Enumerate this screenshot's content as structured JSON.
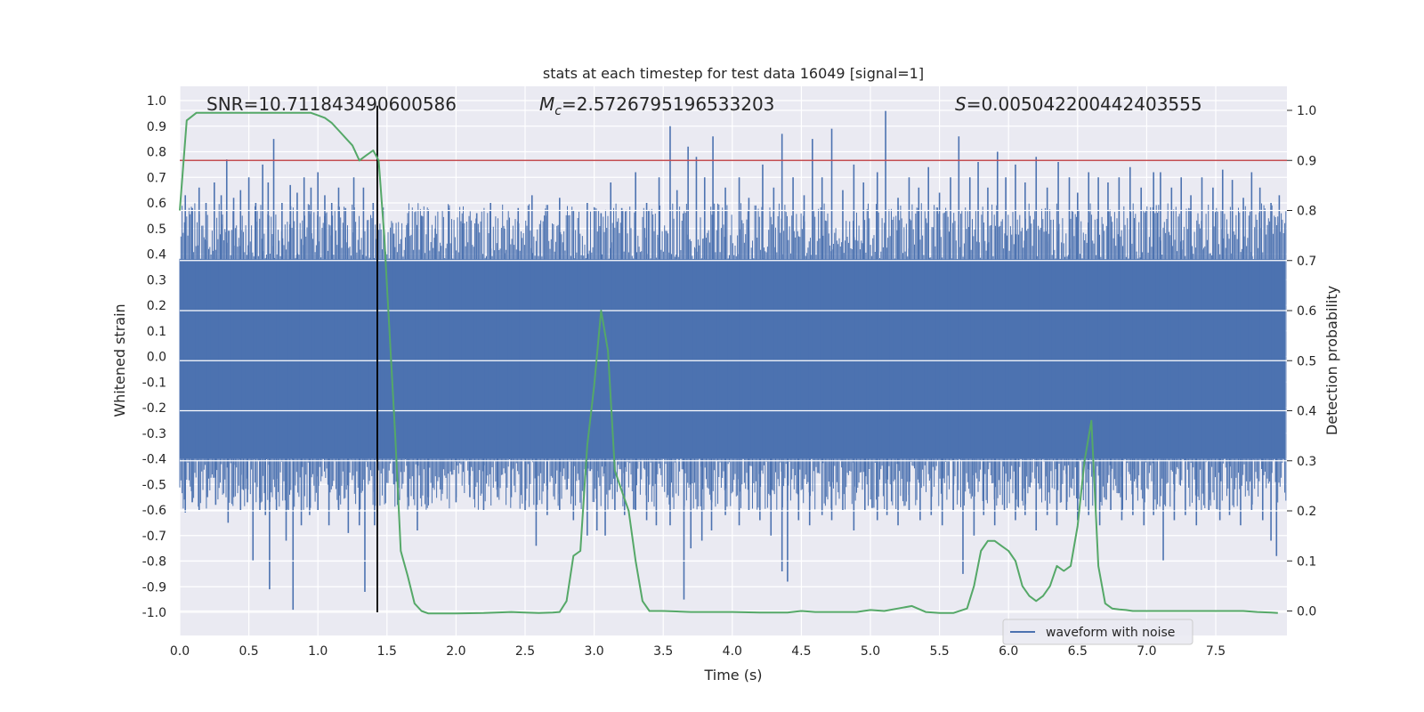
{
  "chart_data": {
    "type": "line",
    "title": "stats at each timestep for test data 16049 [signal=1]",
    "xlabel": "Time (s)",
    "ylabel_left": "Whitened strain",
    "ylabel_right": "Detection probability",
    "xlim": [
      0.0,
      8.0
    ],
    "ylim_left": [
      -1.09,
      1.07
    ],
    "ylim_right": [
      -0.05,
      1.04
    ],
    "x_ticks": [
      0.0,
      0.5,
      1.0,
      1.5,
      2.0,
      2.5,
      3.0,
      3.5,
      4.0,
      4.5,
      5.0,
      5.5,
      6.0,
      6.5,
      7.0,
      7.5
    ],
    "x_tick_labels": [
      "0.0",
      "0.5",
      "1.0",
      "1.5",
      "2.0",
      "2.5",
      "3.0",
      "3.5",
      "4.0",
      "4.5",
      "5.0",
      "5.5",
      "6.0",
      "6.5",
      "7.0",
      "7.5"
    ],
    "y_left_ticks": [
      1.0,
      0.9,
      0.8,
      0.7,
      0.6,
      0.5,
      0.4,
      0.3,
      0.2,
      0.1,
      0.0,
      -0.1,
      -0.2,
      -0.3,
      -0.4,
      -0.5,
      -0.6,
      -0.7,
      -0.8,
      -0.9,
      -1.0
    ],
    "y_left_tick_labels": [
      "1.0",
      "0.9",
      "0.8",
      "0.7",
      "0.6",
      "0.5",
      "0.4",
      "0.3",
      "0.2",
      "0.1",
      "0.0",
      "-0.1",
      "-0.2",
      "-0.3",
      "-0.4",
      "-0.5",
      "-0.6",
      "-0.7",
      "-0.8",
      "-0.9",
      "-1.0"
    ],
    "y_right_ticks": [
      1.0,
      0.9,
      0.8,
      0.7,
      0.6,
      0.5,
      0.4,
      0.3,
      0.2,
      0.1,
      0.0
    ],
    "y_right_tick_labels": [
      "1.0",
      "0.9",
      "0.8",
      "0.7",
      "0.6",
      "0.5",
      "0.4",
      "0.3",
      "0.2",
      "0.1",
      "0.0"
    ],
    "annotations": [
      {
        "name": "snr-annotation",
        "prefix": "SNR",
        "sub": "",
        "value": "=10.711843490600586",
        "x_data": 0.19
      },
      {
        "name": "chirp-mass-annotation",
        "prefix": "M",
        "sub": "c",
        "value": "=2.5726795196533203",
        "x_data": 2.6
      },
      {
        "name": "s-annotation",
        "prefix": "S",
        "sub": "",
        "value": "=0.005042200442403555",
        "x_data": 5.6
      }
    ],
    "legend": [
      {
        "label": "waveform with noise",
        "color": "#4c72b0"
      }
    ],
    "legend_position": "lower-right",
    "threshold_probability": 0.9,
    "merger_time": 1.43,
    "waveform": {
      "name": "waveform with noise",
      "color": "#4c72b0",
      "x_range": [
        0.0,
        8.0
      ],
      "band_lo": -0.4,
      "band_hi": 0.38,
      "upper_spikes": [
        [
          0.04,
          0.63
        ],
        [
          0.09,
          0.58
        ],
        [
          0.14,
          0.66
        ],
        [
          0.19,
          0.6
        ],
        [
          0.25,
          0.68
        ],
        [
          0.3,
          0.63
        ],
        [
          0.34,
          0.77
        ],
        [
          0.39,
          0.62
        ],
        [
          0.44,
          0.65
        ],
        [
          0.5,
          0.7
        ],
        [
          0.55,
          0.6
        ],
        [
          0.6,
          0.75
        ],
        [
          0.64,
          0.68
        ],
        [
          0.68,
          0.85
        ],
        [
          0.74,
          0.6
        ],
        [
          0.8,
          0.67
        ],
        [
          0.85,
          0.64
        ],
        [
          0.9,
          0.7
        ],
        [
          0.95,
          0.66
        ],
        [
          1.0,
          0.72
        ],
        [
          1.05,
          0.63
        ],
        [
          1.1,
          0.6
        ],
        [
          1.15,
          0.66
        ],
        [
          1.2,
          0.58
        ],
        [
          1.26,
          0.7
        ],
        [
          1.33,
          0.66
        ],
        [
          1.4,
          0.6
        ],
        [
          1.55,
          0.48
        ],
        [
          1.65,
          0.52
        ],
        [
          1.75,
          0.55
        ],
        [
          1.85,
          0.5
        ],
        [
          1.95,
          0.58
        ],
        [
          2.05,
          0.52
        ],
        [
          2.15,
          0.56
        ],
        [
          2.25,
          0.6
        ],
        [
          2.35,
          0.5
        ],
        [
          2.45,
          0.58
        ],
        [
          2.55,
          0.63
        ],
        [
          2.65,
          0.55
        ],
        [
          2.75,
          0.62
        ],
        [
          2.85,
          0.57
        ],
        [
          2.95,
          0.6
        ],
        [
          3.05,
          0.56
        ],
        [
          3.12,
          0.68
        ],
        [
          3.2,
          0.58
        ],
        [
          3.3,
          0.72
        ],
        [
          3.38,
          0.6
        ],
        [
          3.47,
          0.7
        ],
        [
          3.55,
          0.9
        ],
        [
          3.6,
          0.65
        ],
        [
          3.68,
          0.82
        ],
        [
          3.74,
          0.78
        ],
        [
          3.8,
          0.7
        ],
        [
          3.86,
          0.86
        ],
        [
          3.95,
          0.66
        ],
        [
          4.05,
          0.7
        ],
        [
          4.12,
          0.62
        ],
        [
          4.22,
          0.75
        ],
        [
          4.3,
          0.66
        ],
        [
          4.36,
          0.87
        ],
        [
          4.44,
          0.7
        ],
        [
          4.52,
          0.63
        ],
        [
          4.58,
          0.85
        ],
        [
          4.65,
          0.7
        ],
        [
          4.72,
          0.89
        ],
        [
          4.8,
          0.65
        ],
        [
          4.88,
          0.75
        ],
        [
          4.95,
          0.68
        ],
        [
          5.05,
          0.72
        ],
        [
          5.11,
          0.96
        ],
        [
          5.2,
          0.62
        ],
        [
          5.28,
          0.7
        ],
        [
          5.35,
          0.66
        ],
        [
          5.42,
          0.74
        ],
        [
          5.5,
          0.64
        ],
        [
          5.58,
          0.7
        ],
        [
          5.64,
          0.86
        ],
        [
          5.72,
          0.7
        ],
        [
          5.78,
          0.76
        ],
        [
          5.85,
          0.66
        ],
        [
          5.92,
          0.8
        ],
        [
          5.98,
          0.7
        ],
        [
          6.05,
          0.75
        ],
        [
          6.12,
          0.68
        ],
        [
          6.2,
          0.78
        ],
        [
          6.28,
          0.66
        ],
        [
          6.36,
          0.76
        ],
        [
          6.44,
          0.7
        ],
        [
          6.5,
          0.64
        ],
        [
          6.58,
          0.72
        ],
        [
          6.65,
          0.7
        ],
        [
          6.72,
          0.68
        ],
        [
          6.8,
          0.7
        ],
        [
          6.88,
          0.74
        ],
        [
          6.96,
          0.66
        ],
        [
          7.05,
          0.72
        ],
        [
          7.1,
          0.72
        ],
        [
          7.18,
          0.66
        ],
        [
          7.25,
          0.7
        ],
        [
          7.32,
          0.63
        ],
        [
          7.4,
          0.7
        ],
        [
          7.48,
          0.66
        ],
        [
          7.55,
          0.73
        ],
        [
          7.62,
          0.69
        ],
        [
          7.7,
          0.62
        ],
        [
          7.76,
          0.72
        ],
        [
          7.82,
          0.66
        ],
        [
          7.9,
          0.6
        ],
        [
          7.96,
          0.63
        ]
      ],
      "lower_spikes": [
        [
          0.04,
          -0.61
        ],
        [
          0.09,
          -0.57
        ],
        [
          0.14,
          -0.6
        ],
        [
          0.2,
          -0.55
        ],
        [
          0.26,
          -0.58
        ],
        [
          0.35,
          -0.65
        ],
        [
          0.39,
          -0.55
        ],
        [
          0.44,
          -0.6
        ],
        [
          0.49,
          -0.57
        ],
        [
          0.53,
          -0.8
        ],
        [
          0.58,
          -0.6
        ],
        [
          0.62,
          -0.62
        ],
        [
          0.65,
          -0.91
        ],
        [
          0.7,
          -0.6
        ],
        [
          0.77,
          -0.72
        ],
        [
          0.82,
          -0.99
        ],
        [
          0.88,
          -0.66
        ],
        [
          0.94,
          -0.62
        ],
        [
          1.0,
          -0.6
        ],
        [
          1.08,
          -0.66
        ],
        [
          1.15,
          -0.6
        ],
        [
          1.22,
          -0.69
        ],
        [
          1.3,
          -0.66
        ],
        [
          1.34,
          -0.92
        ],
        [
          1.41,
          -0.66
        ],
        [
          1.55,
          -0.5
        ],
        [
          1.65,
          -0.55
        ],
        [
          1.72,
          -0.68
        ],
        [
          1.8,
          -0.55
        ],
        [
          1.9,
          -0.52
        ],
        [
          2.0,
          -0.57
        ],
        [
          2.1,
          -0.55
        ],
        [
          2.2,
          -0.6
        ],
        [
          2.3,
          -0.55
        ],
        [
          2.4,
          -0.55
        ],
        [
          2.5,
          -0.6
        ],
        [
          2.58,
          -0.74
        ],
        [
          2.66,
          -0.62
        ],
        [
          2.75,
          -0.6
        ],
        [
          2.85,
          -0.64
        ],
        [
          2.95,
          -0.7
        ],
        [
          3.02,
          -0.68
        ],
        [
          3.08,
          -0.7
        ],
        [
          3.15,
          -0.6
        ],
        [
          3.22,
          -0.62
        ],
        [
          3.3,
          -0.6
        ],
        [
          3.38,
          -0.64
        ],
        [
          3.45,
          -0.66
        ],
        [
          3.55,
          -0.66
        ],
        [
          3.65,
          -0.95
        ],
        [
          3.7,
          -0.75
        ],
        [
          3.78,
          -0.72
        ],
        [
          3.85,
          -0.68
        ],
        [
          3.95,
          -0.62
        ],
        [
          4.05,
          -0.66
        ],
        [
          4.12,
          -0.6
        ],
        [
          4.2,
          -0.64
        ],
        [
          4.28,
          -0.7
        ],
        [
          4.36,
          -0.84
        ],
        [
          4.4,
          -0.88
        ],
        [
          4.48,
          -0.64
        ],
        [
          4.56,
          -0.66
        ],
        [
          4.65,
          -0.62
        ],
        [
          4.72,
          -0.64
        ],
        [
          4.8,
          -0.6
        ],
        [
          4.88,
          -0.68
        ],
        [
          4.96,
          -0.6
        ],
        [
          5.05,
          -0.64
        ],
        [
          5.12,
          -0.62
        ],
        [
          5.2,
          -0.66
        ],
        [
          5.28,
          -0.6
        ],
        [
          5.36,
          -0.64
        ],
        [
          5.44,
          -0.62
        ],
        [
          5.52,
          -0.66
        ],
        [
          5.6,
          -0.6
        ],
        [
          5.67,
          -0.85
        ],
        [
          5.75,
          -0.7
        ],
        [
          5.82,
          -0.62
        ],
        [
          5.9,
          -0.66
        ],
        [
          5.97,
          -0.6
        ],
        [
          6.05,
          -0.64
        ],
        [
          6.12,
          -0.62
        ],
        [
          6.2,
          -0.68
        ],
        [
          6.28,
          -0.62
        ],
        [
          6.35,
          -0.66
        ],
        [
          6.42,
          -0.6
        ],
        [
          6.5,
          -0.64
        ],
        [
          6.58,
          -0.62
        ],
        [
          6.66,
          -0.66
        ],
        [
          6.74,
          -0.6
        ],
        [
          6.82,
          -0.64
        ],
        [
          6.9,
          -0.62
        ],
        [
          6.98,
          -0.66
        ],
        [
          7.05,
          -0.62
        ],
        [
          7.12,
          -0.8
        ],
        [
          7.2,
          -0.64
        ],
        [
          7.28,
          -0.62
        ],
        [
          7.36,
          -0.66
        ],
        [
          7.45,
          -0.6
        ],
        [
          7.53,
          -0.64
        ],
        [
          7.6,
          -0.62
        ],
        [
          7.68,
          -0.66
        ],
        [
          7.76,
          -0.6
        ],
        [
          7.84,
          -0.64
        ],
        [
          7.9,
          -0.72
        ],
        [
          7.94,
          -0.78
        ]
      ]
    },
    "detection_probability": {
      "color": "#55a868",
      "x": [
        0.0,
        0.05,
        0.12,
        0.2,
        0.3,
        0.4,
        0.5,
        0.6,
        0.7,
        0.8,
        0.9,
        0.95,
        1.0,
        1.05,
        1.1,
        1.15,
        1.2,
        1.25,
        1.3,
        1.35,
        1.4,
        1.44,
        1.48,
        1.52,
        1.56,
        1.6,
        1.65,
        1.7,
        1.75,
        1.8,
        1.9,
        2.0,
        2.2,
        2.4,
        2.5,
        2.6,
        2.7,
        2.75,
        2.8,
        2.85,
        2.9,
        2.95,
        3.0,
        3.05,
        3.1,
        3.15,
        3.2,
        3.25,
        3.3,
        3.35,
        3.4,
        3.5,
        3.7,
        4.0,
        4.2,
        4.4,
        4.5,
        4.6,
        4.7,
        4.8,
        4.9,
        5.0,
        5.1,
        5.2,
        5.3,
        5.4,
        5.5,
        5.6,
        5.7,
        5.75,
        5.8,
        5.85,
        5.9,
        5.95,
        6.0,
        6.05,
        6.1,
        6.15,
        6.2,
        6.25,
        6.3,
        6.35,
        6.4,
        6.45,
        6.5,
        6.55,
        6.6,
        6.65,
        6.7,
        6.75,
        6.8,
        6.85,
        6.9,
        6.95,
        7.0,
        7.2,
        7.5,
        7.7,
        7.8,
        7.9,
        7.95
      ],
      "y": [
        0.8,
        0.98,
        0.995,
        0.995,
        0.995,
        0.995,
        0.995,
        0.995,
        0.995,
        0.995,
        0.995,
        0.995,
        0.99,
        0.985,
        0.975,
        0.96,
        0.945,
        0.93,
        0.9,
        0.91,
        0.92,
        0.9,
        0.75,
        0.55,
        0.35,
        0.12,
        0.07,
        0.015,
        0.0,
        -0.005,
        -0.005,
        -0.005,
        -0.004,
        -0.002,
        -0.003,
        -0.004,
        -0.003,
        -0.002,
        0.02,
        0.11,
        0.12,
        0.33,
        0.45,
        0.6,
        0.52,
        0.28,
        0.24,
        0.2,
        0.1,
        0.02,
        0.0,
        0.0,
        -0.002,
        -0.002,
        -0.003,
        -0.003,
        0.0,
        -0.002,
        -0.002,
        -0.002,
        -0.002,
        0.002,
        0.0,
        0.005,
        0.01,
        -0.002,
        -0.004,
        -0.004,
        0.005,
        0.05,
        0.12,
        0.14,
        0.14,
        0.13,
        0.12,
        0.1,
        0.05,
        0.03,
        0.02,
        0.03,
        0.05,
        0.09,
        0.08,
        0.09,
        0.17,
        0.3,
        0.38,
        0.09,
        0.015,
        0.005,
        0.003,
        0.002,
        0.0,
        0.0,
        0.0,
        0.0,
        0.0,
        0.0,
        -0.002,
        -0.003,
        -0.004
      ]
    },
    "horizontal_line": {
      "color": "#c44e52",
      "y_prob": 0.9
    },
    "vertical_line": {
      "color": "#000000",
      "x": 1.43,
      "y_strain_range": [
        -1.0,
        0.98
      ]
    }
  }
}
